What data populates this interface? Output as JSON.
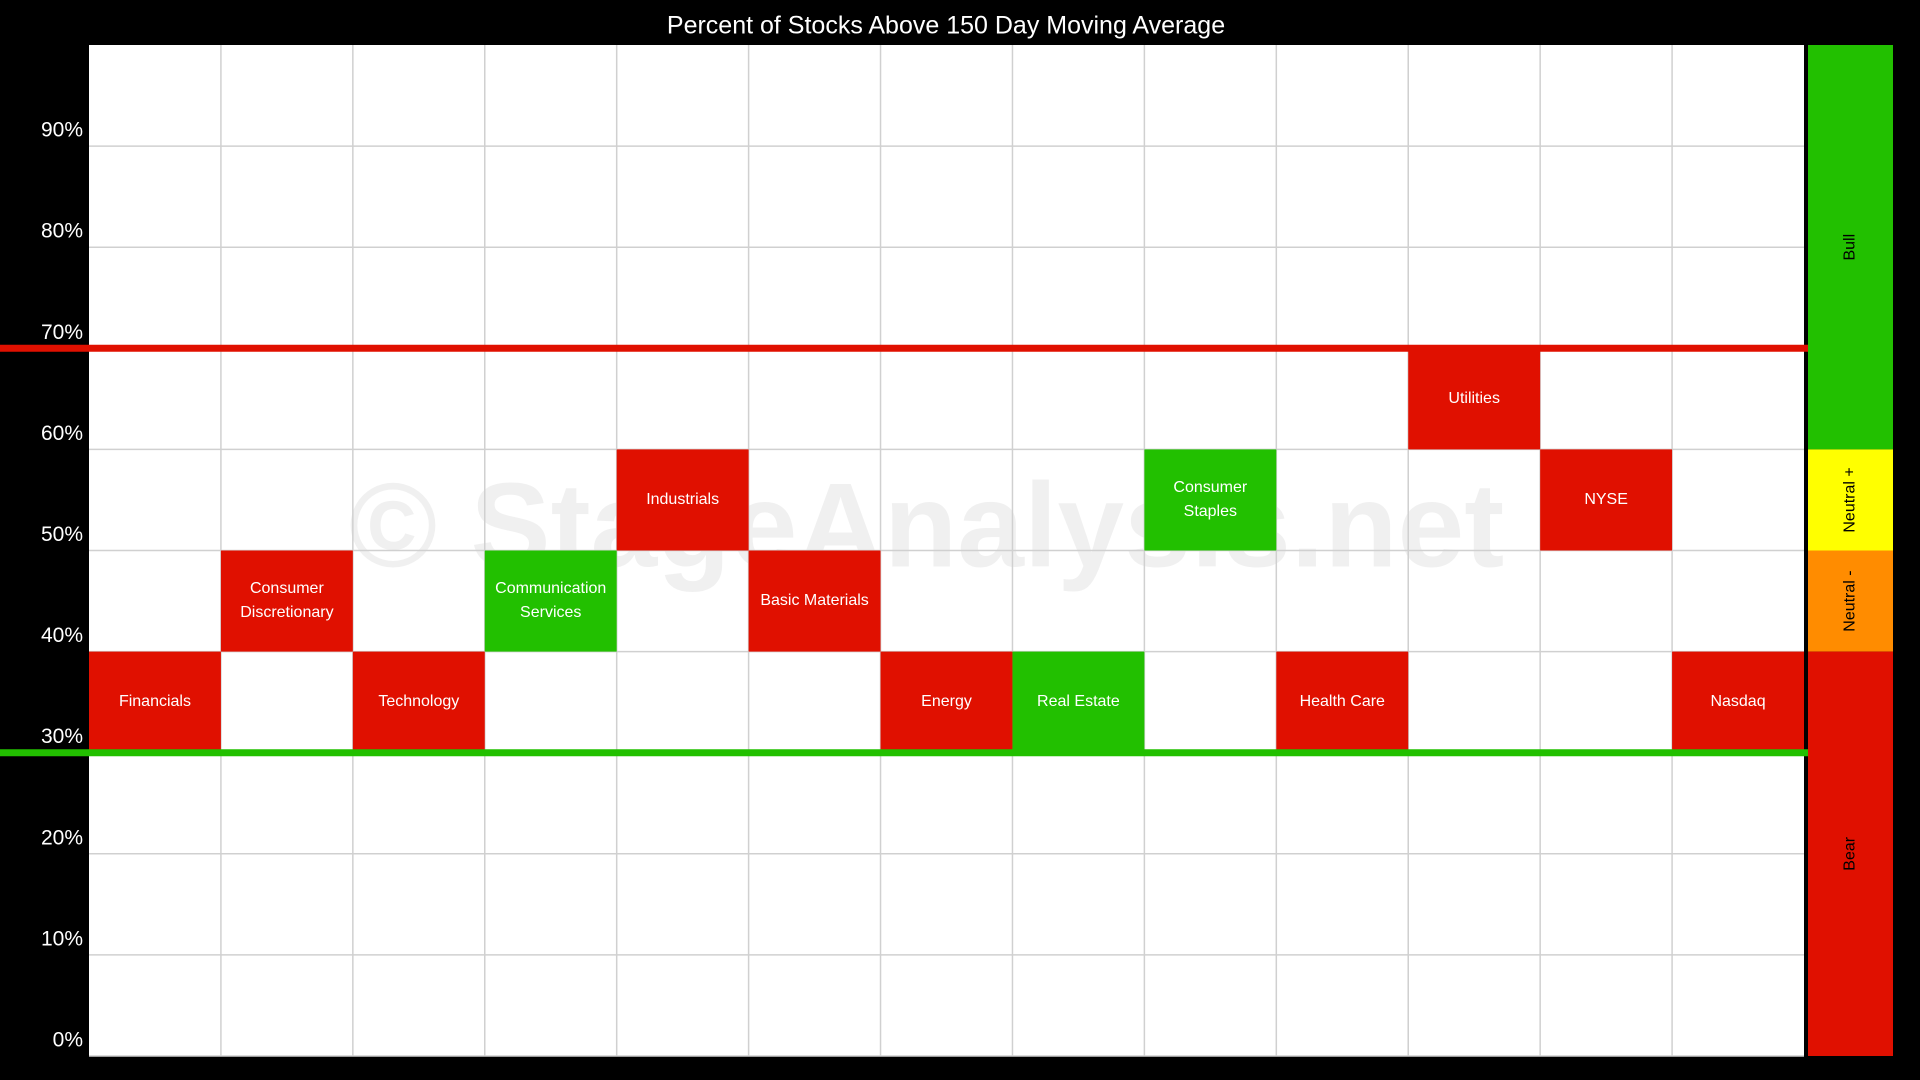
{
  "chart_data": {
    "type": "band",
    "title": "Percent of Stocks Above 150 Day Moving Average",
    "watermark": "© StageAnalysis.net",
    "ylim": [
      0,
      100
    ],
    "yticks": [
      {
        "value": 0,
        "label": "0%"
      },
      {
        "value": 10,
        "label": "10%"
      },
      {
        "value": 20,
        "label": "20%"
      },
      {
        "value": 30,
        "label": "30%"
      },
      {
        "value": 40,
        "label": "40%"
      },
      {
        "value": 50,
        "label": "50%"
      },
      {
        "value": 60,
        "label": "60%"
      },
      {
        "value": 70,
        "label": "70%"
      },
      {
        "value": 80,
        "label": "80%"
      },
      {
        "value": 90,
        "label": "90%"
      }
    ],
    "grid": true,
    "items": [
      {
        "name": "Financials",
        "low": 30,
        "high": 40,
        "color": "#e01000"
      },
      {
        "name": "Consumer Discretionary",
        "low": 40,
        "high": 50,
        "color": "#e01000"
      },
      {
        "name": "Technology",
        "low": 30,
        "high": 40,
        "color": "#e01000"
      },
      {
        "name": "Communication Services",
        "low": 40,
        "high": 50,
        "color": "#22c000"
      },
      {
        "name": "Industrials",
        "low": 50,
        "high": 60,
        "color": "#e01000"
      },
      {
        "name": "Basic Materials",
        "low": 40,
        "high": 50,
        "color": "#e01000"
      },
      {
        "name": "Energy",
        "low": 30,
        "high": 40,
        "color": "#e01000"
      },
      {
        "name": "Real Estate",
        "low": 30,
        "high": 40,
        "color": "#22c000"
      },
      {
        "name": "Consumer Staples",
        "low": 50,
        "high": 60,
        "color": "#22c000"
      },
      {
        "name": "Health Care",
        "low": 30,
        "high": 40,
        "color": "#e01000"
      },
      {
        "name": "Utilities",
        "low": 60,
        "high": 70,
        "color": "#e01000"
      },
      {
        "name": "NYSE",
        "low": 50,
        "high": 60,
        "color": "#e01000"
      },
      {
        "name": "Nasdaq",
        "low": 30,
        "high": 40,
        "color": "#e01000"
      }
    ],
    "reference_lines": [
      {
        "value": 70,
        "color": "#e01000"
      },
      {
        "value": 30,
        "color": "#22c000"
      }
    ],
    "zones": [
      {
        "label": "Bull",
        "from": 60,
        "to": 100,
        "color": "#22c000"
      },
      {
        "label": "Neutral +",
        "from": 50,
        "to": 60,
        "color": "#ffff00"
      },
      {
        "label": "Neutral -",
        "from": 40,
        "to": 50,
        "color": "#ff8c00"
      },
      {
        "label": "Bear",
        "from": 0,
        "to": 40,
        "color": "#e01000"
      }
    ]
  }
}
